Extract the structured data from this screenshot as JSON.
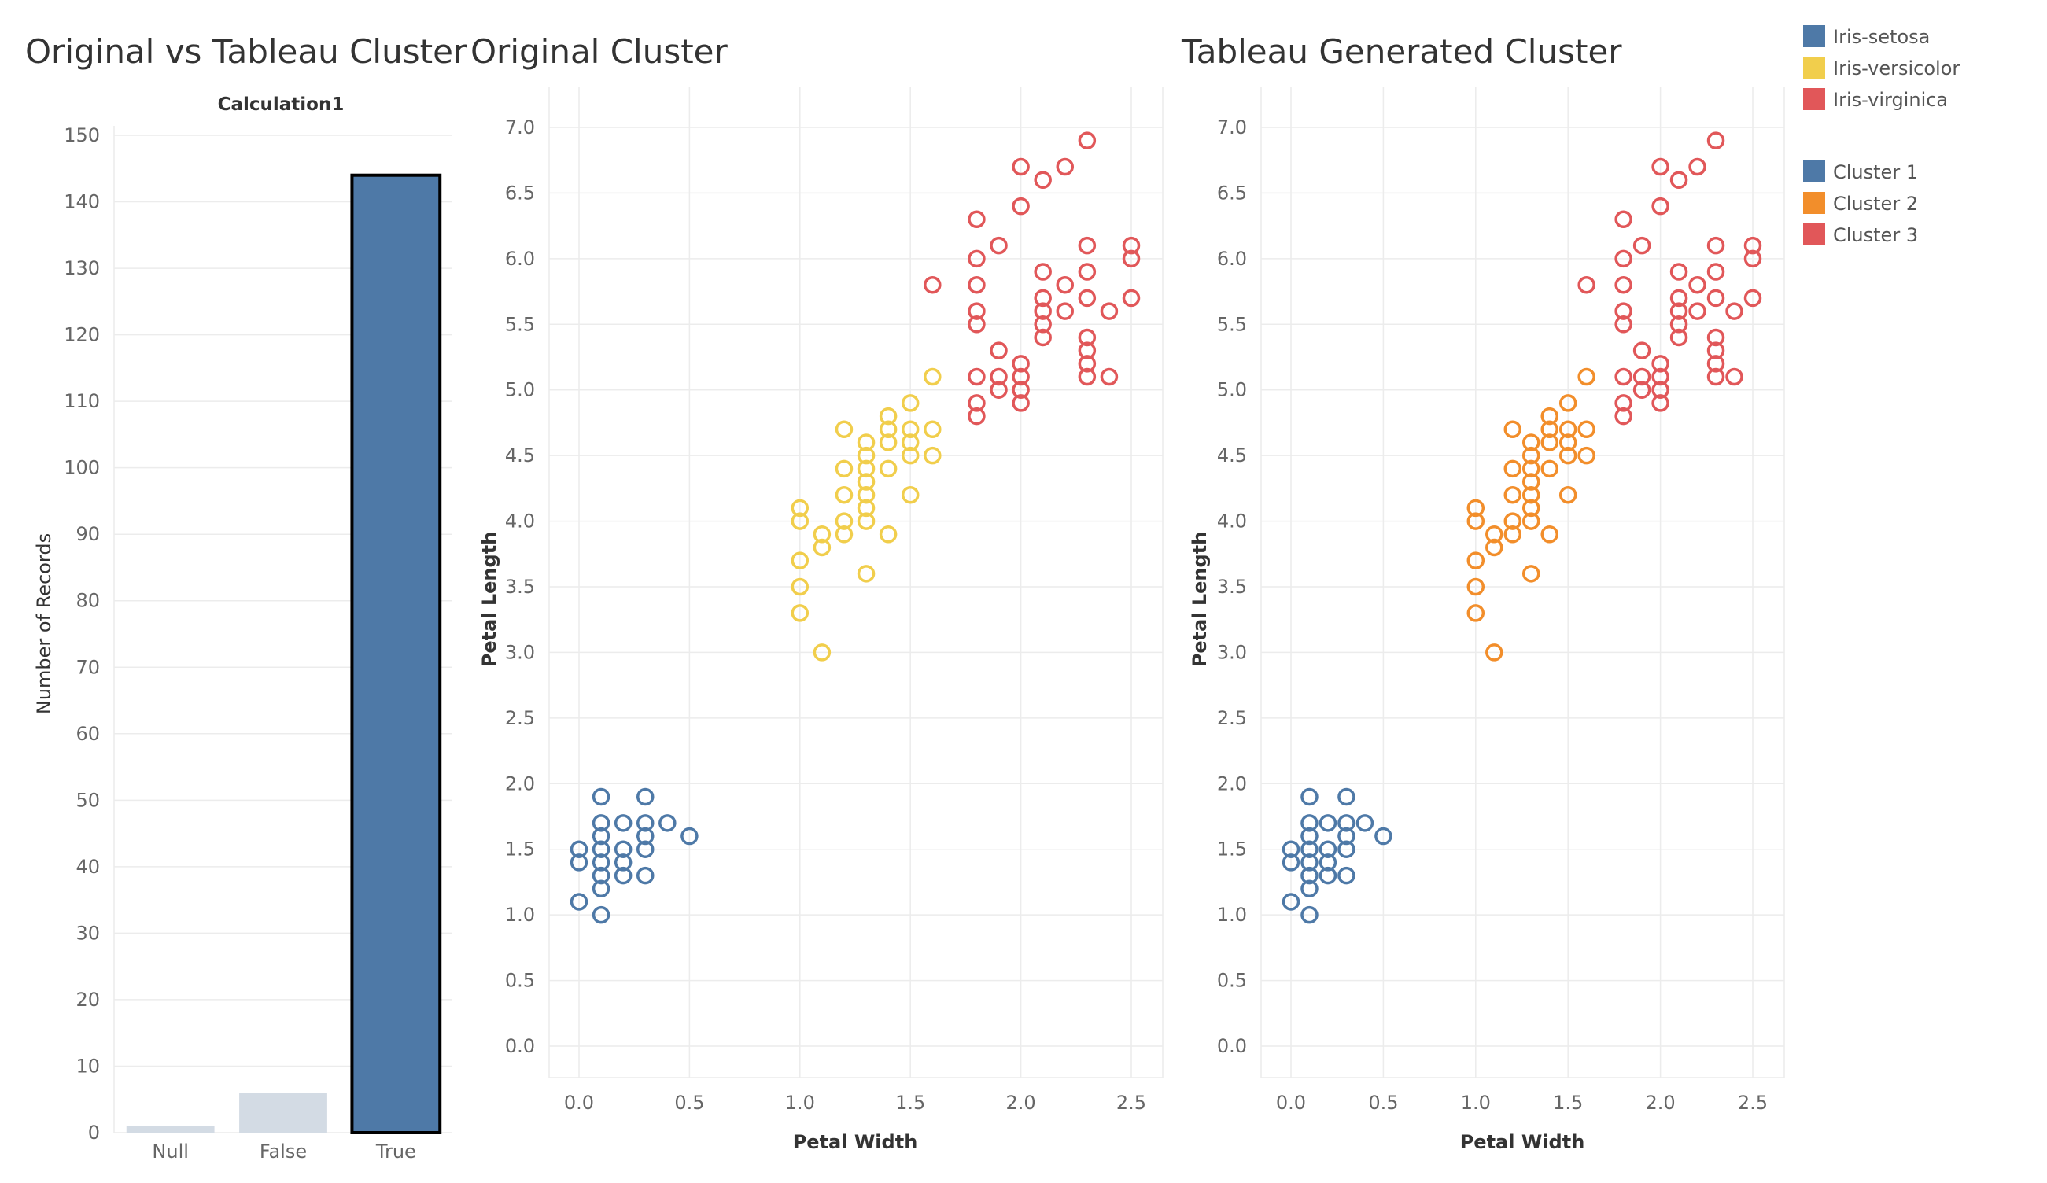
{
  "titles": {
    "bar": "Original vs Tableau Cluster",
    "original": "Original Cluster",
    "tableau": "Tableau Generated Cluster"
  },
  "legend": {
    "species": [
      {
        "label": "Iris-setosa",
        "color": "#4e79a7"
      },
      {
        "label": "Iris-versicolor",
        "color": "#f1ce4c"
      },
      {
        "label": "Iris-virginica",
        "color": "#e15759"
      }
    ],
    "clusters": [
      {
        "label": "Cluster 1",
        "color": "#4e79a7"
      },
      {
        "label": "Cluster 2",
        "color": "#f28e2b"
      },
      {
        "label": "Cluster 3",
        "color": "#e15759"
      }
    ]
  },
  "chart_data": [
    {
      "type": "bar",
      "title": "Original vs Tableau Cluster",
      "header": "Calculation1",
      "categories": [
        "Null",
        "False",
        "True"
      ],
      "values": [
        1,
        6,
        144
      ],
      "colors": [
        "#d3dbe4",
        "#d3dbe4",
        "#4e79a7"
      ],
      "highlighted": "True",
      "xlabel": "",
      "ylabel": "Number of Records",
      "ylim": [
        0,
        150
      ],
      "yticks": [
        0,
        10,
        20,
        30,
        40,
        50,
        60,
        70,
        80,
        90,
        100,
        110,
        120,
        130,
        140,
        150
      ],
      "grid": true
    },
    {
      "type": "scatter",
      "title": "Original Cluster",
      "xlabel": "Petal Width",
      "ylabel": "Petal Length",
      "xlim": [
        0,
        2.5
      ],
      "ylim": [
        0,
        7
      ],
      "xticks": [
        "0.0",
        "0.5",
        "1.0",
        "1.5",
        "2.0",
        "2.5"
      ],
      "yticks": [
        "0.0",
        "0.5",
        "1.0",
        "1.5",
        "2.0",
        "2.5",
        "3.0",
        "3.5",
        "4.0",
        "4.5",
        "5.0",
        "5.5",
        "6.0",
        "6.5",
        "7.0"
      ],
      "grid": true,
      "series": [
        {
          "name": "Iris-setosa",
          "color": "#4e79a7",
          "points": [
            [
              0.0,
              1.5
            ],
            [
              0.0,
              1.4
            ],
            [
              0.0,
              1.1
            ],
            [
              0.1,
              1.9
            ],
            [
              0.1,
              1.7
            ],
            [
              0.1,
              1.6
            ],
            [
              0.1,
              1.5
            ],
            [
              0.1,
              1.4
            ],
            [
              0.1,
              1.3
            ],
            [
              0.1,
              1.2
            ],
            [
              0.1,
              1.0
            ],
            [
              0.2,
              1.7
            ],
            [
              0.2,
              1.5
            ],
            [
              0.2,
              1.4
            ],
            [
              0.2,
              1.3
            ],
            [
              0.3,
              1.9
            ],
            [
              0.3,
              1.7
            ],
            [
              0.3,
              1.6
            ],
            [
              0.3,
              1.5
            ],
            [
              0.3,
              1.3
            ],
            [
              0.4,
              1.7
            ],
            [
              0.5,
              1.6
            ]
          ]
        },
        {
          "name": "Iris-versicolor",
          "color": "#f1ce4c",
          "points": [
            [
              1.0,
              4.1
            ],
            [
              1.0,
              4.0
            ],
            [
              1.0,
              3.7
            ],
            [
              1.0,
              3.5
            ],
            [
              1.0,
              3.3
            ],
            [
              1.1,
              3.9
            ],
            [
              1.1,
              3.8
            ],
            [
              1.1,
              3.0
            ],
            [
              1.2,
              4.7
            ],
            [
              1.2,
              4.4
            ],
            [
              1.2,
              4.2
            ],
            [
              1.2,
              4.0
            ],
            [
              1.2,
              3.9
            ],
            [
              1.3,
              4.6
            ],
            [
              1.3,
              4.5
            ],
            [
              1.3,
              4.4
            ],
            [
              1.3,
              4.3
            ],
            [
              1.3,
              4.2
            ],
            [
              1.3,
              4.1
            ],
            [
              1.3,
              4.0
            ],
            [
              1.3,
              3.6
            ],
            [
              1.4,
              4.8
            ],
            [
              1.4,
              4.7
            ],
            [
              1.4,
              4.6
            ],
            [
              1.4,
              4.4
            ],
            [
              1.4,
              3.9
            ],
            [
              1.5,
              4.9
            ],
            [
              1.5,
              4.7
            ],
            [
              1.5,
              4.6
            ],
            [
              1.5,
              4.5
            ],
            [
              1.5,
              4.2
            ],
            [
              1.6,
              5.1
            ],
            [
              1.6,
              4.7
            ],
            [
              1.6,
              4.5
            ]
          ]
        },
        {
          "name": "Iris-virginica",
          "color": "#e15759",
          "points": [
            [
              1.6,
              5.8
            ],
            [
              1.8,
              6.3
            ],
            [
              1.8,
              6.0
            ],
            [
              1.8,
              5.8
            ],
            [
              1.8,
              5.6
            ],
            [
              1.8,
              5.5
            ],
            [
              1.8,
              5.1
            ],
            [
              1.8,
              4.9
            ],
            [
              1.8,
              4.8
            ],
            [
              1.9,
              6.1
            ],
            [
              1.9,
              5.3
            ],
            [
              1.9,
              5.1
            ],
            [
              1.9,
              5.0
            ],
            [
              2.0,
              6.7
            ],
            [
              2.0,
              6.4
            ],
            [
              2.0,
              5.2
            ],
            [
              2.0,
              5.1
            ],
            [
              2.0,
              5.0
            ],
            [
              2.0,
              4.9
            ],
            [
              2.1,
              6.6
            ],
            [
              2.1,
              5.9
            ],
            [
              2.1,
              5.7
            ],
            [
              2.1,
              5.6
            ],
            [
              2.1,
              5.5
            ],
            [
              2.1,
              5.4
            ],
            [
              2.2,
              6.7
            ],
            [
              2.2,
              5.8
            ],
            [
              2.2,
              5.6
            ],
            [
              2.3,
              6.9
            ],
            [
              2.3,
              6.1
            ],
            [
              2.3,
              5.9
            ],
            [
              2.3,
              5.7
            ],
            [
              2.3,
              5.4
            ],
            [
              2.3,
              5.3
            ],
            [
              2.3,
              5.2
            ],
            [
              2.3,
              5.1
            ],
            [
              2.4,
              5.6
            ],
            [
              2.4,
              5.1
            ],
            [
              2.5,
              6.1
            ],
            [
              2.5,
              6.0
            ],
            [
              2.5,
              5.7
            ]
          ]
        }
      ]
    },
    {
      "type": "scatter",
      "title": "Tableau Generated Cluster",
      "xlabel": "Petal Width",
      "ylabel": "Petal Length",
      "xlim": [
        0,
        2.5
      ],
      "ylim": [
        0,
        7
      ],
      "xticks": [
        "0.0",
        "0.5",
        "1.0",
        "1.5",
        "2.0",
        "2.5"
      ],
      "yticks": [
        "0.0",
        "0.5",
        "1.0",
        "1.5",
        "2.0",
        "2.5",
        "3.0",
        "3.5",
        "4.0",
        "4.5",
        "5.0",
        "5.5",
        "6.0",
        "6.5",
        "7.0"
      ],
      "grid": true,
      "series": [
        {
          "name": "Cluster 1",
          "color": "#4e79a7",
          "points": [
            [
              0.0,
              1.5
            ],
            [
              0.0,
              1.4
            ],
            [
              0.0,
              1.1
            ],
            [
              0.1,
              1.9
            ],
            [
              0.1,
              1.7
            ],
            [
              0.1,
              1.6
            ],
            [
              0.1,
              1.5
            ],
            [
              0.1,
              1.4
            ],
            [
              0.1,
              1.3
            ],
            [
              0.1,
              1.2
            ],
            [
              0.1,
              1.0
            ],
            [
              0.2,
              1.7
            ],
            [
              0.2,
              1.5
            ],
            [
              0.2,
              1.4
            ],
            [
              0.2,
              1.3
            ],
            [
              0.3,
              1.9
            ],
            [
              0.3,
              1.7
            ],
            [
              0.3,
              1.6
            ],
            [
              0.3,
              1.5
            ],
            [
              0.3,
              1.3
            ],
            [
              0.4,
              1.7
            ],
            [
              0.5,
              1.6
            ]
          ]
        },
        {
          "name": "Cluster 2",
          "color": "#f28e2b",
          "points": [
            [
              1.0,
              4.1
            ],
            [
              1.0,
              4.0
            ],
            [
              1.0,
              3.7
            ],
            [
              1.0,
              3.5
            ],
            [
              1.0,
              3.3
            ],
            [
              1.1,
              3.9
            ],
            [
              1.1,
              3.8
            ],
            [
              1.1,
              3.0
            ],
            [
              1.2,
              4.7
            ],
            [
              1.2,
              4.4
            ],
            [
              1.2,
              4.2
            ],
            [
              1.2,
              4.0
            ],
            [
              1.2,
              3.9
            ],
            [
              1.3,
              4.6
            ],
            [
              1.3,
              4.5
            ],
            [
              1.3,
              4.4
            ],
            [
              1.3,
              4.3
            ],
            [
              1.3,
              4.2
            ],
            [
              1.3,
              4.1
            ],
            [
              1.3,
              4.0
            ],
            [
              1.3,
              3.6
            ],
            [
              1.4,
              4.8
            ],
            [
              1.4,
              4.7
            ],
            [
              1.4,
              4.6
            ],
            [
              1.4,
              4.4
            ],
            [
              1.4,
              3.9
            ],
            [
              1.5,
              4.9
            ],
            [
              1.5,
              4.7
            ],
            [
              1.5,
              4.6
            ],
            [
              1.5,
              4.5
            ],
            [
              1.5,
              4.2
            ],
            [
              1.6,
              5.1
            ],
            [
              1.6,
              4.7
            ],
            [
              1.6,
              4.5
            ]
          ]
        },
        {
          "name": "Cluster 3",
          "color": "#e15759",
          "points": [
            [
              1.6,
              5.8
            ],
            [
              1.8,
              6.3
            ],
            [
              1.8,
              6.0
            ],
            [
              1.8,
              5.8
            ],
            [
              1.8,
              5.6
            ],
            [
              1.8,
              5.5
            ],
            [
              1.8,
              5.1
            ],
            [
              1.8,
              4.9
            ],
            [
              1.8,
              4.8
            ],
            [
              1.9,
              6.1
            ],
            [
              1.9,
              5.3
            ],
            [
              1.9,
              5.1
            ],
            [
              1.9,
              5.0
            ],
            [
              2.0,
              6.7
            ],
            [
              2.0,
              6.4
            ],
            [
              2.0,
              5.2
            ],
            [
              2.0,
              5.1
            ],
            [
              2.0,
              5.0
            ],
            [
              2.0,
              4.9
            ],
            [
              2.1,
              6.6
            ],
            [
              2.1,
              5.9
            ],
            [
              2.1,
              5.7
            ],
            [
              2.1,
              5.6
            ],
            [
              2.1,
              5.5
            ],
            [
              2.1,
              5.4
            ],
            [
              2.2,
              6.7
            ],
            [
              2.2,
              5.8
            ],
            [
              2.2,
              5.6
            ],
            [
              2.3,
              6.9
            ],
            [
              2.3,
              6.1
            ],
            [
              2.3,
              5.9
            ],
            [
              2.3,
              5.7
            ],
            [
              2.3,
              5.4
            ],
            [
              2.3,
              5.3
            ],
            [
              2.3,
              5.2
            ],
            [
              2.3,
              5.1
            ],
            [
              2.4,
              5.6
            ],
            [
              2.4,
              5.1
            ],
            [
              2.5,
              6.1
            ],
            [
              2.5,
              6.0
            ],
            [
              2.5,
              5.7
            ]
          ]
        }
      ]
    }
  ]
}
